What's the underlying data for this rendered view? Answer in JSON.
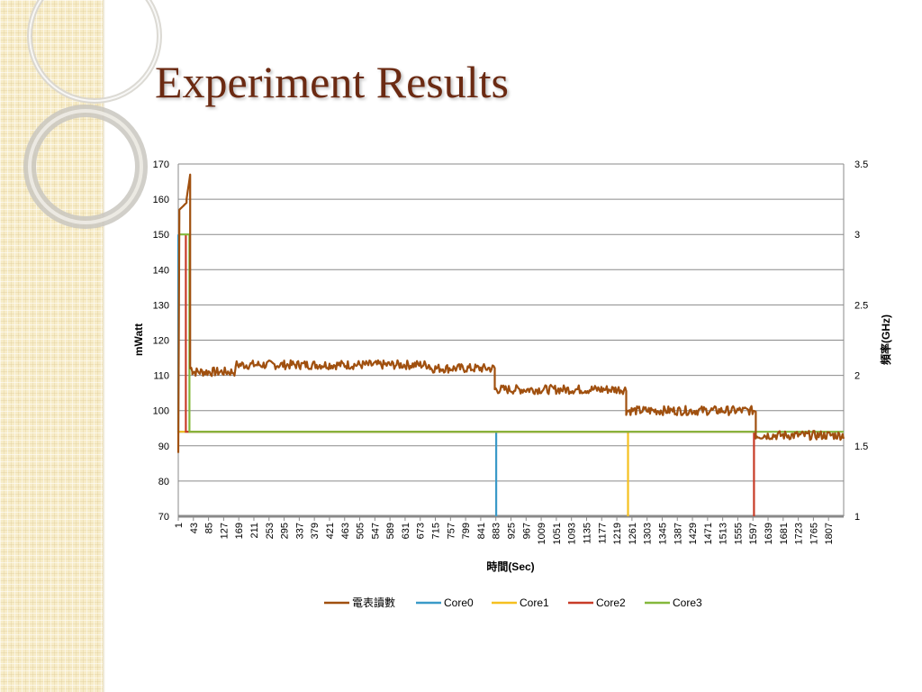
{
  "slide": {
    "title": "Experiment Results"
  },
  "colors": {
    "series_power": "#a0500f",
    "core0": "#3a9ac8",
    "core1": "#f5c020",
    "core2": "#c83c28",
    "core3": "#84b83c",
    "title": "#6b2a12"
  },
  "chart_data": {
    "type": "line",
    "title": "",
    "xlabel": "時間(Sec)",
    "ylabel": "mWatt",
    "y2label": "頻率(GHz)",
    "ylim": [
      70,
      170
    ],
    "y2lim": [
      1,
      3.5
    ],
    "yticks": [
      70,
      80,
      90,
      100,
      110,
      120,
      130,
      140,
      150,
      160,
      170
    ],
    "y2ticks": [
      "1",
      "1.5",
      "2",
      "2.5",
      "3",
      "3.5"
    ],
    "xlim": [
      1,
      1849
    ],
    "xticks": [
      "1",
      "43",
      "85",
      "127",
      "169",
      "211",
      "253",
      "295",
      "337",
      "379",
      "421",
      "463",
      "505",
      "547",
      "589",
      "631",
      "673",
      "715",
      "757",
      "799",
      "841",
      "883",
      "925",
      "967",
      "1009",
      "1051",
      "1093",
      "1135",
      "1177",
      "1219",
      "1261",
      "1303",
      "1345",
      "1387",
      "1429",
      "1471",
      "1513",
      "1555",
      "1597",
      "1639",
      "1681",
      "1723",
      "1765",
      "1807"
    ],
    "grid": true,
    "legend_position": "bottom",
    "series": [
      {
        "name": "電表讀數",
        "axis": "left",
        "segments": [
          {
            "x": [
              1,
              4
            ],
            "y": [
              88,
              155
            ]
          },
          {
            "x": [
              4,
              24
            ],
            "y": [
              157,
              159
            ]
          },
          {
            "x": [
              24,
              34
            ],
            "y": [
              160,
              167
            ]
          },
          {
            "x": [
              34,
              40
            ],
            "y": [
              112,
              112
            ]
          },
          {
            "x": [
              40,
              160
            ],
            "y": [
              111,
              111
            ]
          },
          {
            "x": [
              160,
              340
            ],
            "y": [
              113,
              113
            ]
          },
          {
            "x": [
              340,
              700
            ],
            "y": [
              113,
              113
            ]
          },
          {
            "x": [
              700,
              880
            ],
            "y": [
              112,
              112
            ]
          },
          {
            "x": [
              880,
              1245
            ],
            "y": [
              106,
              106
            ]
          },
          {
            "x": [
              1245,
              1605
            ],
            "y": [
              100,
              100
            ]
          },
          {
            "x": [
              1605,
              1849
            ],
            "y": [
              93,
              93
            ]
          }
        ]
      },
      {
        "name": "Core0",
        "axis": "right",
        "x": [
          1,
          1,
          884,
          884
        ],
        "y": [
          3,
          1.6,
          1.6,
          1
        ]
      },
      {
        "name": "Core1",
        "axis": "right",
        "x": [
          1,
          1250,
          1250
        ],
        "y": [
          1.6,
          1.6,
          1
        ]
      },
      {
        "name": "Core2",
        "axis": "right",
        "x": [
          22,
          22,
          1600,
          1600
        ],
        "y": [
          3,
          1.6,
          1.6,
          1
        ]
      },
      {
        "name": "Core3",
        "axis": "right",
        "x": [
          1,
          32,
          32,
          1849
        ],
        "y": [
          3,
          3,
          1.6,
          1.6
        ]
      }
    ]
  }
}
